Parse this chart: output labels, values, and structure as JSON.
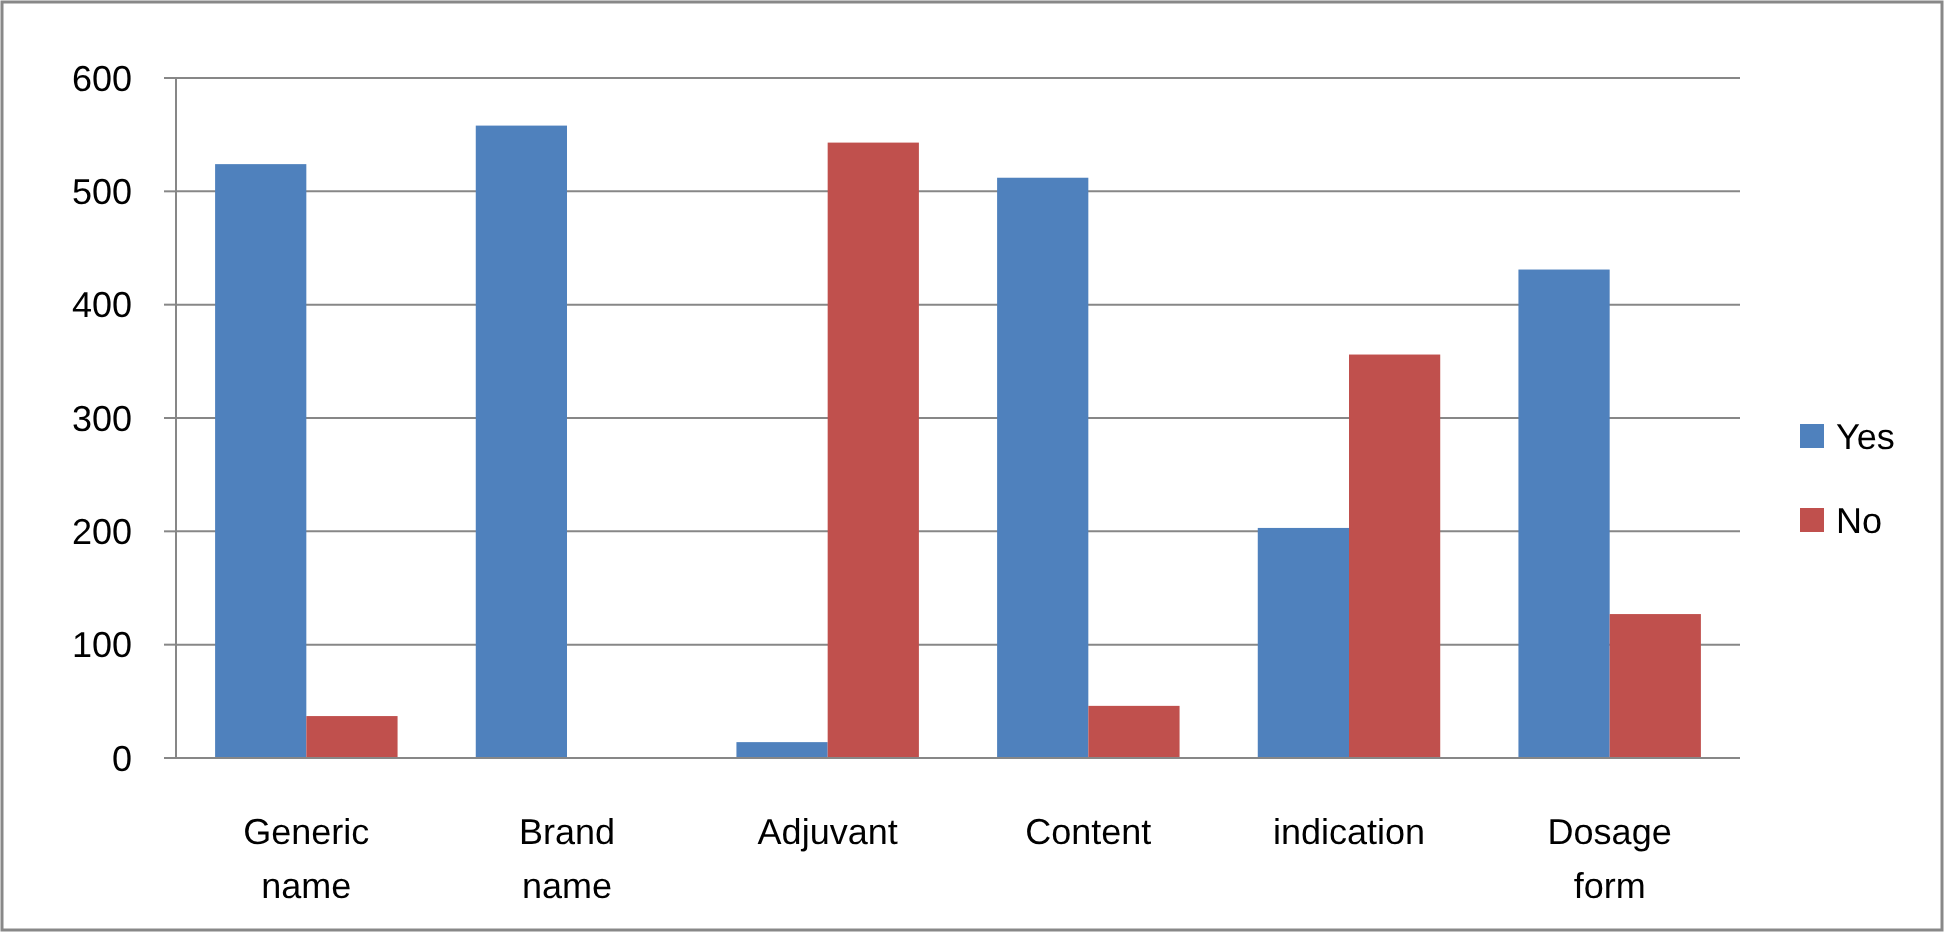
{
  "chart_data": {
    "type": "bar",
    "categories": [
      "Generic name",
      "Brand name",
      "Adjuvant",
      "Content",
      "indication",
      "Dosage form"
    ],
    "series": [
      {
        "name": "Yes",
        "color": "#4f81bd",
        "values": [
          524,
          558,
          14,
          512,
          203,
          431
        ]
      },
      {
        "name": "No",
        "color": "#c0504d",
        "values": [
          37,
          0,
          543,
          46,
          356,
          127
        ]
      }
    ],
    "ylim": [
      0,
      600
    ],
    "yticks": [
      0,
      100,
      200,
      300,
      400,
      500,
      600
    ],
    "grid": "y",
    "legend": "right"
  }
}
